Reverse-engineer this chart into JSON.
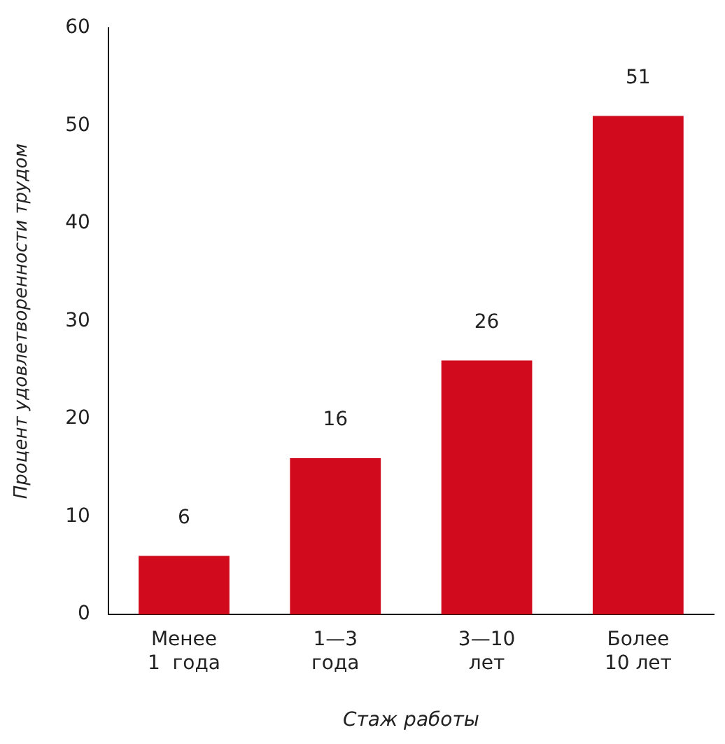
{
  "chart_data": {
    "type": "bar",
    "xlabel": "Стаж работы",
    "ylabel": "Процент удовлетворенности трудом",
    "categories": [
      "Менее\n1  года",
      "1—3\nгода",
      "3—10\nлет",
      "Более\n10 лет"
    ],
    "values": [
      6,
      16,
      26,
      51
    ],
    "color": "#d20a1e",
    "ylim": [
      0,
      60
    ],
    "yticks": [
      0,
      10,
      20,
      30,
      40,
      50,
      60
    ],
    "grid": false,
    "legend": false,
    "data_labels": true
  }
}
